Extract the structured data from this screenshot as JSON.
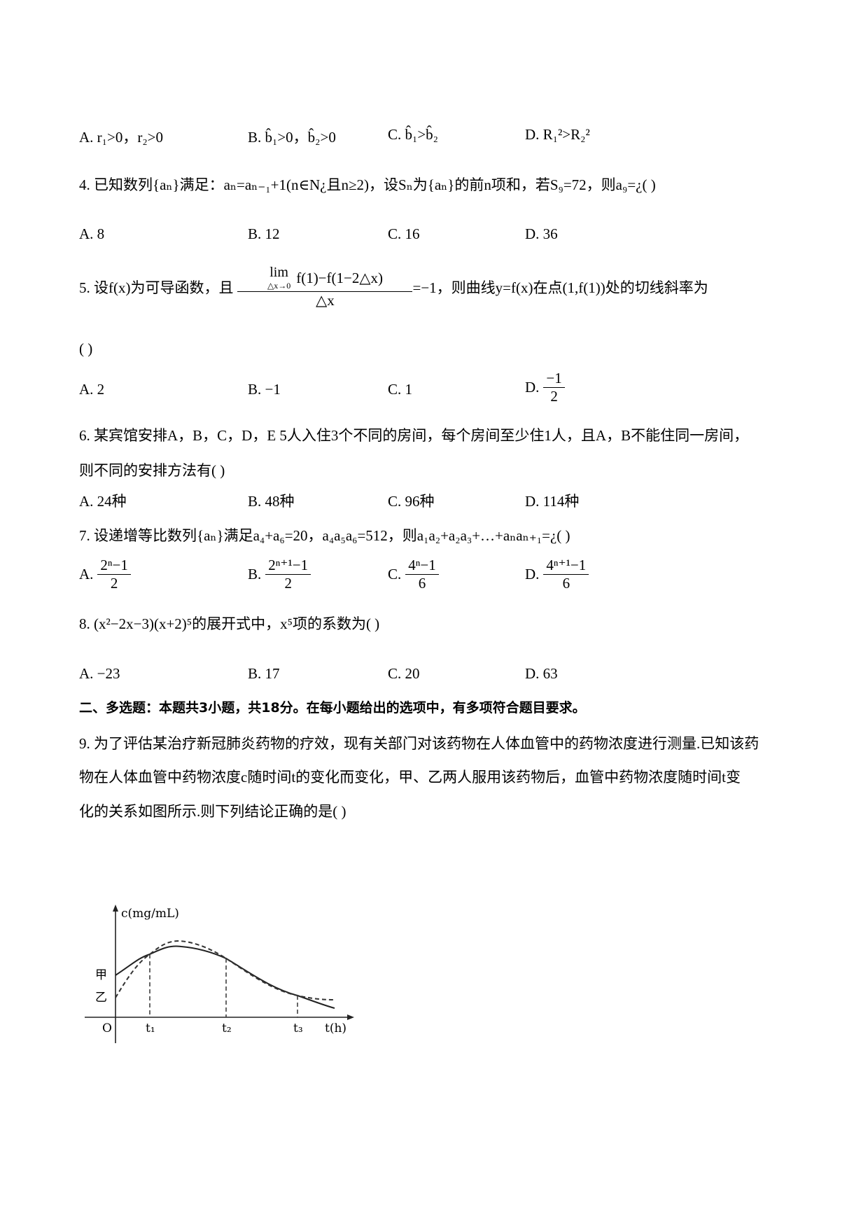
{
  "q3": {
    "options": [
      {
        "label": "A.",
        "text": "r₁>0，r₂>0"
      },
      {
        "label": "B.",
        "text": "b̂₁>0，b̂₂>0"
      },
      {
        "label": "C.",
        "text": "b̂₁>b̂₂"
      },
      {
        "label": "D.",
        "text": "R₁²>R₂²"
      }
    ]
  },
  "q4": {
    "stem": "4. 已知数列{aₙ}满足：aₙ=aₙ₋₁+1(n∈N¿且n≥2)，设Sₙ为{aₙ}的前n项和，若S₉=72，则a₉=¿( )",
    "options": [
      {
        "label": "A.",
        "text": "8"
      },
      {
        "label": "B.",
        "text": "12"
      },
      {
        "label": "C.",
        "text": "16"
      },
      {
        "label": "D.",
        "text": "36"
      }
    ]
  },
  "q5": {
    "stem_start": "5. 设f(x)为可导函数，且",
    "limit": "lim",
    "limit_sub": "△x→0",
    "numerator": "f(1)−f(1−2△x)",
    "denominator": "△x",
    "stem_end": "=−1，则曲线y=f(x)在点(1,f(1))处的切线斜率为",
    "answer_blank": "( )",
    "options": [
      {
        "label": "A.",
        "text": "2"
      },
      {
        "label": "B.",
        "text": "−1"
      },
      {
        "label": "C.",
        "text": "1"
      },
      {
        "label": "D.",
        "numerator": "−1",
        "denominator": "2"
      }
    ]
  },
  "q6": {
    "stem": [
      "6. 某宾馆安排A，B，C，D，E 5人入住3个不同的房间，每个房间至少住1人，且A，B不能住同一房间，",
      "则不同的安排方法有( )"
    ],
    "options": [
      {
        "label": "A.",
        "text": "24种"
      },
      {
        "label": "B.",
        "text": "48种"
      },
      {
        "label": "C.",
        "text": "96种"
      },
      {
        "label": "D.",
        "text": "114种"
      }
    ]
  },
  "q7": {
    "stem": "7. 设递增等比数列{aₙ}满足a₄+a₆=20，a₄a₅a₆=512，则a₁a₂+a₂a₃+…+aₙaₙ₊₁=¿( )",
    "options": [
      {
        "label": "A.",
        "numerator": "2ⁿ−1",
        "denominator": "2"
      },
      {
        "label": "B.",
        "numerator": "2ⁿ⁺¹−1",
        "denominator": "2"
      },
      {
        "label": "C.",
        "numerator": "4ⁿ−1",
        "denominator": "6"
      },
      {
        "label": "D.",
        "numerator": "4ⁿ⁺¹−1",
        "denominator": "6"
      }
    ]
  },
  "q8": {
    "stem": "8. (x²−2x−3)(x+2)⁵的展开式中，x⁵项的系数为( )",
    "options": [
      {
        "label": "A.",
        "text": "−23"
      },
      {
        "label": "B.",
        "text": "17"
      },
      {
        "label": "C.",
        "text": "20"
      },
      {
        "label": "D.",
        "text": "63"
      }
    ]
  },
  "section": "二、多选题：本题共3小题，共18分。在每小题给出的选项中，有多项符合题目要求。",
  "q9": {
    "stem": [
      "9. 为了评估某治疗新冠肺炎药物的疗效，现有关部门对该药物在人体血管中的药物浓度进行测量.已知该药",
      "物在人体血管中药物浓度c随时间t的变化而变化，甲、乙两人服用该药物后，血管中药物浓度随时间t变",
      "化的关系如图所示.则下列结论正确的是( )"
    ],
    "figure": {
      "y_axis_label": "c(mg/mL)",
      "x_axis_label": "t(h)",
      "origin": "O",
      "curve_labels": [
        "甲",
        "乙"
      ],
      "x_marks": [
        "t₁",
        "t₂",
        "t₃"
      ]
    }
  }
}
